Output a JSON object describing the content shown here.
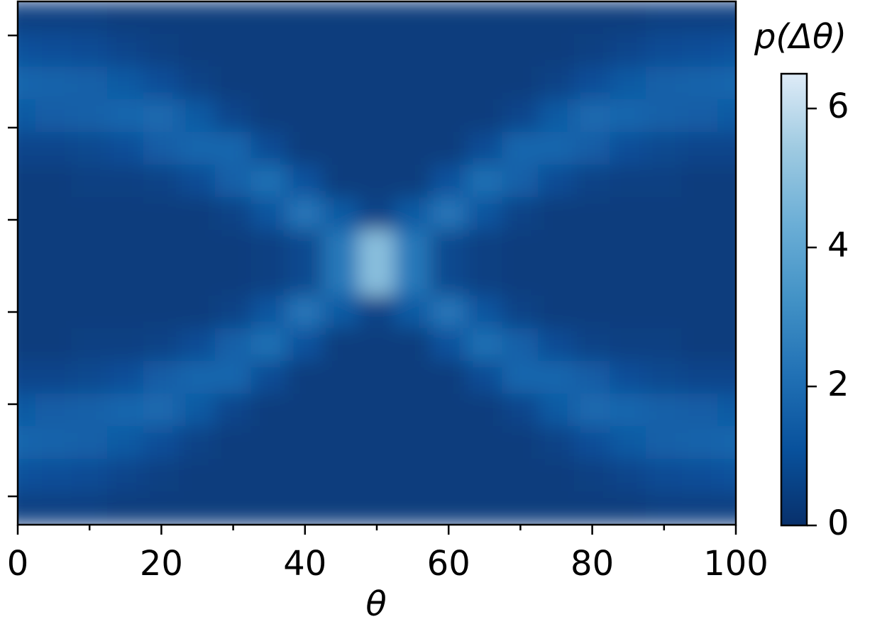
{
  "chart_data": {
    "type": "heatmap",
    "x_label": "θ",
    "colorbar_label": "p(Δθ)",
    "x": [
      0,
      5,
      10,
      15,
      20,
      25,
      30,
      35,
      40,
      45,
      50,
      55,
      60,
      65,
      70,
      75,
      80,
      85,
      90,
      95,
      100
    ],
    "values": [
      [
        0.5,
        0.5,
        0.5,
        0.4,
        0.4,
        0.4,
        0.4,
        0.4,
        0.4,
        0.4,
        0.4,
        0.4,
        0.4,
        0.4,
        0.4,
        0.4,
        0.4,
        0.4,
        0.5,
        0.5,
        0.5
      ],
      [
        1.1,
        1.0,
        0.9,
        0.7,
        0.5,
        0.4,
        0.4,
        0.4,
        0.4,
        0.4,
        0.4,
        0.4,
        0.4,
        0.4,
        0.4,
        0.4,
        0.5,
        0.7,
        0.9,
        1.0,
        1.1
      ],
      [
        1.8,
        1.7,
        1.6,
        1.4,
        1.0,
        0.6,
        0.4,
        0.4,
        0.4,
        0.4,
        0.4,
        0.4,
        0.4,
        0.4,
        0.4,
        0.6,
        1.0,
        1.4,
        1.6,
        1.7,
        1.8
      ],
      [
        1.4,
        1.5,
        1.6,
        1.8,
        1.9,
        1.4,
        0.7,
        0.4,
        0.4,
        0.4,
        0.4,
        0.4,
        0.4,
        0.4,
        0.7,
        1.4,
        1.9,
        1.8,
        1.6,
        1.5,
        1.4
      ],
      [
        0.7,
        0.7,
        0.8,
        1.0,
        1.5,
        1.8,
        1.8,
        0.9,
        0.4,
        0.4,
        0.4,
        0.4,
        0.4,
        0.9,
        1.8,
        1.8,
        1.5,
        1.0,
        0.8,
        0.7,
        0.7
      ],
      [
        0.4,
        0.4,
        0.5,
        0.5,
        0.6,
        0.9,
        1.6,
        2.1,
        1.1,
        0.4,
        0.4,
        0.4,
        1.1,
        2.1,
        1.6,
        0.9,
        0.6,
        0.5,
        0.5,
        0.4,
        0.4
      ],
      [
        0.4,
        0.4,
        0.4,
        0.4,
        0.4,
        0.4,
        0.6,
        1.2,
        2.3,
        1.4,
        0.6,
        1.4,
        2.3,
        1.2,
        0.6,
        0.4,
        0.4,
        0.4,
        0.4,
        0.4,
        0.4
      ],
      [
        0.4,
        0.4,
        0.4,
        0.4,
        0.4,
        0.4,
        0.4,
        0.5,
        0.8,
        2.4,
        5.0,
        2.4,
        0.8,
        0.5,
        0.4,
        0.4,
        0.4,
        0.4,
        0.4,
        0.4,
        0.4
      ],
      [
        0.4,
        0.4,
        0.4,
        0.4,
        0.4,
        0.4,
        0.4,
        0.5,
        0.8,
        2.4,
        5.0,
        2.4,
        0.8,
        0.5,
        0.4,
        0.4,
        0.4,
        0.4,
        0.4,
        0.4,
        0.4
      ],
      [
        0.4,
        0.4,
        0.4,
        0.4,
        0.4,
        0.4,
        0.6,
        1.2,
        2.3,
        1.4,
        0.6,
        1.4,
        2.3,
        1.2,
        0.6,
        0.4,
        0.4,
        0.4,
        0.4,
        0.4,
        0.4
      ],
      [
        0.4,
        0.4,
        0.5,
        0.5,
        0.6,
        0.9,
        1.6,
        2.1,
        1.1,
        0.4,
        0.4,
        0.4,
        1.1,
        2.1,
        1.6,
        0.9,
        0.6,
        0.5,
        0.5,
        0.4,
        0.4
      ],
      [
        0.7,
        0.7,
        0.8,
        1.0,
        1.5,
        1.8,
        1.8,
        0.9,
        0.4,
        0.4,
        0.4,
        0.4,
        0.4,
        0.9,
        1.8,
        1.8,
        1.5,
        1.0,
        0.8,
        0.7,
        0.7
      ],
      [
        1.4,
        1.5,
        1.6,
        1.8,
        1.9,
        1.4,
        0.7,
        0.4,
        0.4,
        0.4,
        0.4,
        0.4,
        0.4,
        0.4,
        0.7,
        1.4,
        1.9,
        1.8,
        1.6,
        1.5,
        1.4
      ],
      [
        1.8,
        1.7,
        1.6,
        1.4,
        1.0,
        0.6,
        0.4,
        0.4,
        0.4,
        0.4,
        0.4,
        0.4,
        0.4,
        0.4,
        0.4,
        0.6,
        1.0,
        1.4,
        1.6,
        1.7,
        1.8
      ],
      [
        1.1,
        1.0,
        0.9,
        0.7,
        0.5,
        0.4,
        0.4,
        0.4,
        0.4,
        0.4,
        0.4,
        0.4,
        0.4,
        0.4,
        0.4,
        0.4,
        0.5,
        0.7,
        0.9,
        1.0,
        1.1
      ],
      [
        0.5,
        0.5,
        0.5,
        0.4,
        0.4,
        0.4,
        0.4,
        0.4,
        0.4,
        0.4,
        0.4,
        0.4,
        0.4,
        0.4,
        0.4,
        0.4,
        0.4,
        0.4,
        0.5,
        0.5,
        0.5
      ]
    ],
    "xlim": [
      0,
      100
    ],
    "xticks": [
      0,
      20,
      40,
      60,
      80,
      100
    ],
    "xminorticks": [
      10,
      30,
      50,
      70,
      90
    ],
    "clim": [
      0,
      6.5
    ],
    "cticks": [
      0,
      2,
      4,
      6
    ],
    "colormap": [
      "#08306b",
      "#08519c",
      "#2171b5",
      "#4292c6",
      "#6baed6",
      "#9ecae1",
      "#deebf7"
    ]
  }
}
